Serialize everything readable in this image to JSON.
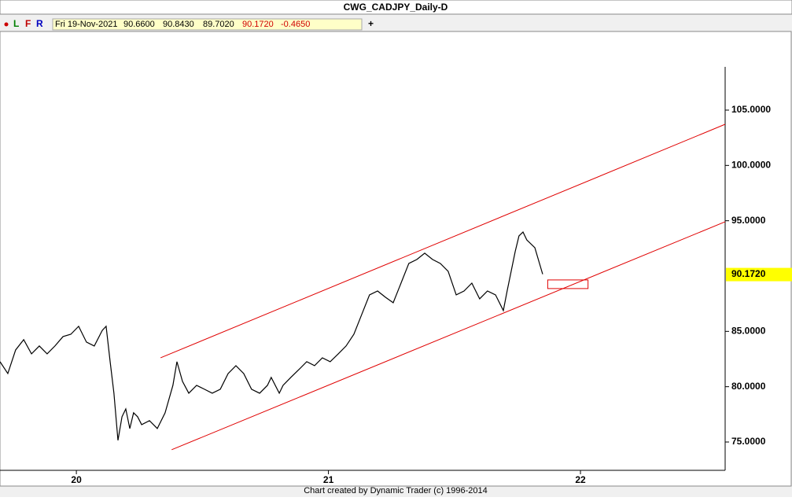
{
  "title": "CWG_CADJPY_Daily-D",
  "toolbar": {
    "buttons": [
      "L",
      "F",
      "R"
    ],
    "date": "Fri 19-Nov-2021",
    "open": "90.6600",
    "high": "90.8430",
    "low": "89.7020",
    "close": "90.1720",
    "change": "-0.4650",
    "add": "+"
  },
  "footer": "Chart created by Dynamic Trader  (c) 1996-2014",
  "chart_data": {
    "type": "line",
    "color": "#000000",
    "x": [
      19.697,
      19.728,
      19.759,
      19.791,
      19.822,
      19.853,
      19.884,
      19.915,
      19.947,
      19.978,
      20.009,
      20.04,
      20.071,
      20.103,
      20.118,
      20.134,
      20.149,
      20.165,
      20.181,
      20.196,
      20.212,
      20.227,
      20.243,
      20.259,
      20.29,
      20.321,
      20.352,
      20.383,
      20.399,
      20.421,
      20.446,
      20.477,
      20.508,
      20.539,
      20.571,
      20.602,
      20.633,
      20.664,
      20.695,
      20.727,
      20.758,
      20.773,
      20.805,
      20.82,
      20.851,
      20.883,
      20.914,
      20.945,
      20.976,
      21.007,
      21.039,
      21.07,
      21.101,
      21.132,
      21.163,
      21.195,
      21.226,
      21.257,
      21.288,
      21.319,
      21.351,
      21.382,
      21.413,
      21.444,
      21.475,
      21.507,
      21.538,
      21.569,
      21.6,
      21.631,
      21.663,
      21.694,
      21.709,
      21.725,
      21.741,
      21.756,
      21.772,
      21.787,
      21.819,
      21.85
    ],
    "values": [
      82.26,
      81.19,
      83.32,
      84.25,
      82.97,
      83.68,
      82.97,
      83.68,
      84.53,
      84.74,
      85.46,
      84.03,
      83.68,
      85.1,
      85.46,
      82.26,
      79.41,
      75.15,
      77.28,
      77.99,
      76.22,
      77.64,
      77.28,
      76.57,
      76.93,
      76.22,
      77.64,
      80.12,
      82.26,
      80.48,
      79.41,
      80.12,
      79.77,
      79.41,
      79.77,
      81.19,
      81.9,
      81.19,
      79.77,
      79.41,
      80.12,
      80.84,
      79.41,
      80.12,
      80.84,
      81.55,
      82.26,
      81.9,
      82.61,
      82.26,
      82.97,
      83.68,
      84.74,
      86.52,
      88.3,
      88.65,
      88.09,
      87.59,
      89.36,
      91.14,
      91.5,
      92.07,
      91.5,
      91.14,
      90.43,
      88.3,
      88.65,
      89.36,
      87.94,
      88.65,
      88.3,
      86.88,
      88.65,
      90.43,
      92.21,
      93.63,
      93.98,
      93.27,
      92.56,
      90.17
    ],
    "xlim": [
      19.697,
      22.574
    ],
    "ylim": [
      72.44,
      112.11
    ],
    "xticks": [
      20,
      21,
      22
    ],
    "yticks": [
      {
        "value": 75,
        "label": "75.0000"
      },
      {
        "value": 80,
        "label": "80.0000"
      },
      {
        "value": 85,
        "label": "85.0000"
      },
      {
        "value": 95,
        "label": "95.0000"
      },
      {
        "value": 100,
        "label": "100.0000"
      },
      {
        "value": 105,
        "label": "105.0000"
      }
    ],
    "last_price": {
      "value": 90.172,
      "label": "90.1720"
    },
    "lines": [
      {
        "x": [
          20.334,
          22.574
        ],
        "y": [
          82.61,
          103.72
        ],
        "color": "#e00000"
      },
      {
        "x": [
          20.378,
          22.574
        ],
        "y": [
          74.3,
          94.91
        ],
        "color": "#e00000"
      }
    ],
    "box": {
      "x": [
        21.87,
        22.03
      ],
      "y": [
        88.87,
        89.65
      ],
      "color": "#e00000"
    }
  }
}
